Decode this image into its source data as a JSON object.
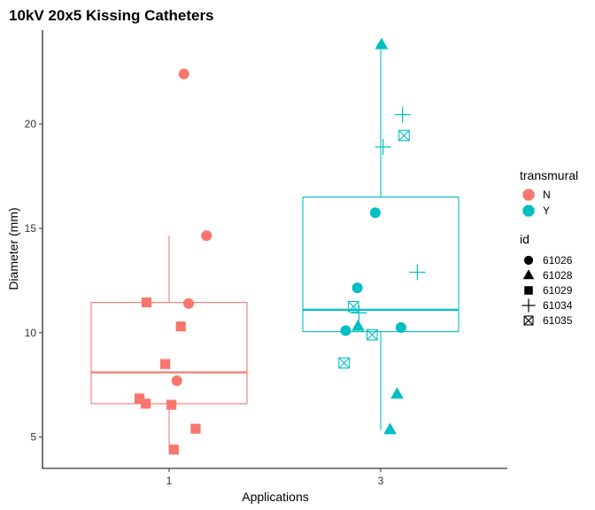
{
  "chart_data": {
    "type": "box",
    "title": "10kV 20x5 Kissing Catheters",
    "xlabel": "Applications",
    "ylabel": "Diameter (mm)",
    "categories": [
      "1",
      "3"
    ],
    "ylim": [
      3.5,
      24.5
    ],
    "yticks": [
      5,
      10,
      15,
      20
    ],
    "grid": false,
    "legend_placement": "right",
    "color_legend": {
      "title": "transmural",
      "entries": [
        {
          "label": "N",
          "color": "#F8766D"
        },
        {
          "label": "Y",
          "color": "#00BFC4"
        }
      ]
    },
    "shape_legend": {
      "title": "id",
      "entries": [
        {
          "label": "61026",
          "shape": "circle"
        },
        {
          "label": "61028",
          "shape": "triangle"
        },
        {
          "label": "61029",
          "shape": "square"
        },
        {
          "label": "61034",
          "shape": "plus"
        },
        {
          "label": "61035",
          "shape": "square-x"
        }
      ]
    },
    "boxes": [
      {
        "category": "1",
        "transmural": "N",
        "color": "#F8766D",
        "whisker_low": 4.4,
        "q1": 6.6,
        "median": 8.1,
        "q3": 11.45,
        "whisker_high": 14.65
      },
      {
        "category": "3",
        "transmural": "Y",
        "color": "#00BFC4",
        "whisker_low": 5.35,
        "q1": 10.05,
        "median": 11.1,
        "q3": 16.5,
        "whisker_high": 23.8
      }
    ],
    "points": [
      {
        "category": "1",
        "jitter": 0.19,
        "y": 22.4,
        "id": "61026",
        "transmural": "N"
      },
      {
        "category": "1",
        "jitter": 0.48,
        "y": 14.65,
        "id": "61026",
        "transmural": "N"
      },
      {
        "category": "1",
        "jitter": 0.25,
        "y": 11.4,
        "id": "61026",
        "transmural": "N"
      },
      {
        "category": "1",
        "jitter": 0.1,
        "y": 7.7,
        "id": "61026",
        "transmural": "N"
      },
      {
        "category": "1",
        "jitter": -0.29,
        "y": 11.45,
        "id": "61029",
        "transmural": "N"
      },
      {
        "category": "1",
        "jitter": 0.15,
        "y": 10.3,
        "id": "61029",
        "transmural": "N"
      },
      {
        "category": "1",
        "jitter": -0.05,
        "y": 8.5,
        "id": "61029",
        "transmural": "N"
      },
      {
        "category": "1",
        "jitter": -0.38,
        "y": 6.85,
        "id": "61029",
        "transmural": "N"
      },
      {
        "category": "1",
        "jitter": -0.3,
        "y": 6.6,
        "id": "61029",
        "transmural": "N"
      },
      {
        "category": "1",
        "jitter": 0.03,
        "y": 6.55,
        "id": "61029",
        "transmural": "N"
      },
      {
        "category": "1",
        "jitter": 0.34,
        "y": 5.4,
        "id": "61029",
        "transmural": "N"
      },
      {
        "category": "1",
        "jitter": 0.06,
        "y": 4.4,
        "id": "61029",
        "transmural": "N"
      },
      {
        "category": "3",
        "jitter": -0.07,
        "y": 15.75,
        "id": "61026",
        "transmural": "Y"
      },
      {
        "category": "3",
        "jitter": -0.3,
        "y": 12.15,
        "id": "61026",
        "transmural": "Y"
      },
      {
        "category": "3",
        "jitter": -0.45,
        "y": 10.1,
        "id": "61026",
        "transmural": "Y"
      },
      {
        "category": "3",
        "jitter": 0.26,
        "y": 10.25,
        "id": "61026",
        "transmural": "Y"
      },
      {
        "category": "3",
        "jitter": 0.01,
        "y": 23.8,
        "id": "61028",
        "transmural": "Y"
      },
      {
        "category": "3",
        "jitter": -0.29,
        "y": 10.3,
        "id": "61028",
        "transmural": "Y"
      },
      {
        "category": "3",
        "jitter": 0.21,
        "y": 7.05,
        "id": "61028",
        "transmural": "Y"
      },
      {
        "category": "3",
        "jitter": 0.12,
        "y": 5.35,
        "id": "61028",
        "transmural": "Y"
      },
      {
        "category": "3",
        "jitter": 0.28,
        "y": 20.45,
        "id": "61034",
        "transmural": "Y"
      },
      {
        "category": "3",
        "jitter": 0.03,
        "y": 18.9,
        "id": "61034",
        "transmural": "Y"
      },
      {
        "category": "3",
        "jitter": 0.47,
        "y": 12.9,
        "id": "61034",
        "transmural": "Y"
      },
      {
        "category": "3",
        "jitter": -0.28,
        "y": 10.95,
        "id": "61034",
        "transmural": "Y"
      },
      {
        "category": "3",
        "jitter": 0.3,
        "y": 19.45,
        "id": "61035",
        "transmural": "Y"
      },
      {
        "category": "3",
        "jitter": -0.35,
        "y": 11.25,
        "id": "61035",
        "transmural": "Y"
      },
      {
        "category": "3",
        "jitter": -0.11,
        "y": 9.9,
        "id": "61035",
        "transmural": "Y"
      },
      {
        "category": "3",
        "jitter": -0.47,
        "y": 8.55,
        "id": "61035",
        "transmural": "Y"
      }
    ]
  }
}
